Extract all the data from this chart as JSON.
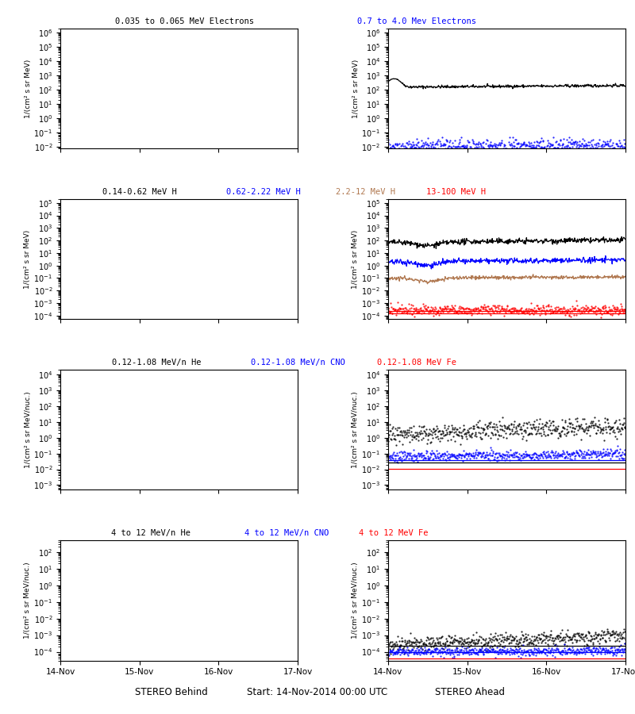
{
  "title_center": "Start: 14-Nov-2014 00:00 UTC",
  "xlabel_left": "STEREO Behind",
  "xlabel_right": "STEREO Ahead",
  "xticklabels": [
    "14-Nov",
    "15-Nov",
    "16-Nov",
    "17-Nov"
  ],
  "bg_color": "#ffffff",
  "row_titles": [
    [
      {
        "text": "0.035 to 0.065 MeV Electrons",
        "color": "black"
      },
      {
        "text": "0.7 to 4.0 Mev Electrons",
        "color": "blue"
      }
    ],
    [
      {
        "text": "0.14-0.62 MeV H",
        "color": "black"
      },
      {
        "text": "0.62-2.22 MeV H",
        "color": "blue"
      },
      {
        "text": "2.2-12 MeV H",
        "color": "#b07850"
      },
      {
        "text": "13-100 MeV H",
        "color": "red"
      }
    ],
    [
      {
        "text": "0.12-1.08 MeV/n He",
        "color": "black"
      },
      {
        "text": "0.12-1.08 MeV/n CNO",
        "color": "blue"
      },
      {
        "text": "0.12-1.08 MeV Fe",
        "color": "red"
      }
    ],
    [
      {
        "text": "4 to 12 MeV/n He",
        "color": "black"
      },
      {
        "text": "4 to 12 MeV/n CNO",
        "color": "blue"
      },
      {
        "text": "4 to 12 MeV Fe",
        "color": "red"
      }
    ]
  ],
  "panels": [
    {
      "side": "left",
      "row": 0,
      "ylabel": "1/(cm² s sr MeV)",
      "ylim": [
        0.007,
        2000000.0
      ],
      "series": []
    },
    {
      "side": "right",
      "row": 0,
      "ylabel": "1/(cm² s sr MeV)",
      "ylim": [
        0.007,
        2000000.0
      ],
      "series": [
        {
          "color": "black",
          "level": 150,
          "noise": 0.12,
          "style": "line",
          "start_bump": true,
          "trend": 1.3
        },
        {
          "color": "blue",
          "level": 0.011,
          "noise": 0.55,
          "style": "scatter",
          "trend": 1.0
        }
      ]
    },
    {
      "side": "left",
      "row": 1,
      "ylabel": "1/(cm² s sr MeV)",
      "ylim": [
        5e-05,
        200000.0
      ],
      "series": []
    },
    {
      "side": "right",
      "row": 1,
      "ylabel": "1/(cm² s sr MeV)",
      "ylim": [
        5e-05,
        200000.0
      ],
      "series": [
        {
          "color": "black",
          "level": 70,
          "noise": 0.25,
          "style": "line",
          "trend": 1.5,
          "dip": true
        },
        {
          "color": "blue",
          "level": 2.0,
          "noise": 0.25,
          "style": "line",
          "trend": 1.4,
          "dip": true
        },
        {
          "color": "#b07850",
          "level": 0.1,
          "noise": 0.18,
          "style": "line",
          "trend": 1.2,
          "dip": true
        },
        {
          "color": "red",
          "level": 0.00028,
          "noise": 0.45,
          "style": "scatter",
          "trend": 1.0
        },
        {
          "color": "red",
          "level": 0.00022,
          "noise": 0.0,
          "style": "hline"
        },
        {
          "color": "red",
          "level": 0.00015,
          "noise": 0.0,
          "style": "hline"
        }
      ]
    },
    {
      "side": "left",
      "row": 2,
      "ylabel": "1/(cm² s sr MeV/nuc.)",
      "ylim": [
        0.0005,
        20000.0
      ],
      "series": []
    },
    {
      "side": "right",
      "row": 2,
      "ylabel": "1/(cm² s sr MeV/nuc.)",
      "ylim": [
        0.0005,
        20000.0
      ],
      "series": [
        {
          "color": "black",
          "level": 2.0,
          "noise": 0.65,
          "style": "scatter",
          "trend": 2.5,
          "dip": true,
          "dip_depth": 0.3
        },
        {
          "color": "blue",
          "level": 0.065,
          "noise": 0.35,
          "style": "scatter",
          "trend": 1.5
        },
        {
          "color": "red",
          "level": 0.011,
          "noise": 0.0,
          "style": "hline"
        },
        {
          "color": "blue",
          "level": 0.04,
          "noise": 0.0,
          "style": "hline"
        },
        {
          "color": "black",
          "level": 0.028,
          "noise": 0.0,
          "style": "hline"
        }
      ]
    },
    {
      "side": "left",
      "row": 3,
      "ylabel": "1/(cm² s sr MeV/nuc.)",
      "ylim": [
        3e-05,
        500.0
      ],
      "series": []
    },
    {
      "side": "right",
      "row": 3,
      "ylabel": "1/(cm² s sr MeV/nuc.)",
      "ylim": [
        3e-05,
        500.0
      ],
      "series": [
        {
          "color": "black",
          "level": 0.00028,
          "noise": 0.5,
          "style": "scatter",
          "trend": 3.5
        },
        {
          "color": "blue",
          "level": 0.0001,
          "noise": 0.3,
          "style": "scatter",
          "trend": 1.2
        },
        {
          "color": "red",
          "level": 4e-05,
          "noise": 0.0,
          "style": "hline"
        },
        {
          "color": "blue",
          "level": 9e-05,
          "noise": 0.0,
          "style": "hline"
        },
        {
          "color": "black",
          "level": 0.00022,
          "noise": 0.0,
          "style": "hline"
        }
      ]
    }
  ]
}
